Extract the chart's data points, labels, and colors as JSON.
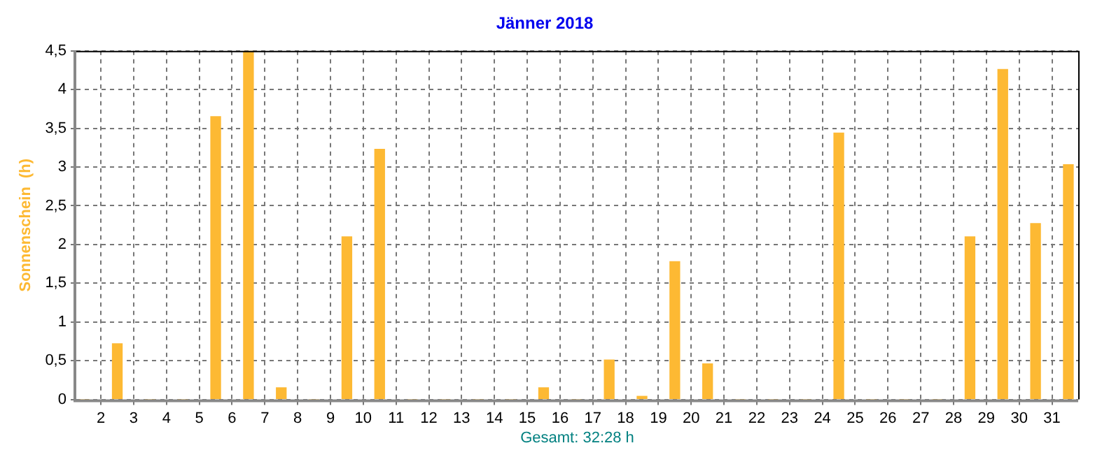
{
  "chart_data": {
    "type": "bar",
    "title": "Jänner 2018",
    "ylabel": "Sonnenschein  (h)",
    "annotations": [
      "Gesamt: 32:28 h"
    ],
    "x": [
      1.5,
      2.5,
      3.5,
      4.5,
      5.5,
      6.5,
      7.5,
      8.5,
      9.5,
      10.5,
      11.5,
      12.5,
      13.5,
      14.5,
      15.5,
      16.5,
      17.5,
      18.5,
      19.5,
      20.5,
      21.5,
      22.5,
      23.5,
      24.5,
      25.5,
      26.5,
      27.5,
      28.5,
      29.5,
      30.5,
      31.5
    ],
    "values": [
      0,
      0.72,
      0,
      0,
      3.65,
      4.5,
      0.15,
      0,
      2.1,
      3.23,
      0,
      0,
      0,
      0,
      0.15,
      0,
      0.51,
      0.04,
      1.78,
      0.46,
      0,
      0,
      0,
      3.44,
      0,
      0,
      0,
      2.1,
      4.26,
      2.27,
      3.03
    ],
    "color": "#fdb933",
    "xlim": [
      1.25,
      31.8
    ],
    "xticks": [
      2,
      3,
      4,
      5,
      6,
      7,
      8,
      9,
      10,
      11,
      12,
      13,
      14,
      15,
      16,
      17,
      18,
      19,
      20,
      21,
      22,
      23,
      24,
      25,
      26,
      27,
      28,
      29,
      30,
      31
    ],
    "ylim": [
      0,
      4.5
    ],
    "yticks": [
      0,
      {
        "value": 0.5,
        "label": "0,5"
      },
      1,
      {
        "value": 1.5,
        "label": "1,5"
      },
      2,
      {
        "value": 2.5,
        "label": "2,5"
      },
      3,
      {
        "value": 3.5,
        "label": "3,5"
      },
      4,
      {
        "value": 4.5,
        "label": "4,5"
      }
    ],
    "grid": true,
    "legend": false
  }
}
